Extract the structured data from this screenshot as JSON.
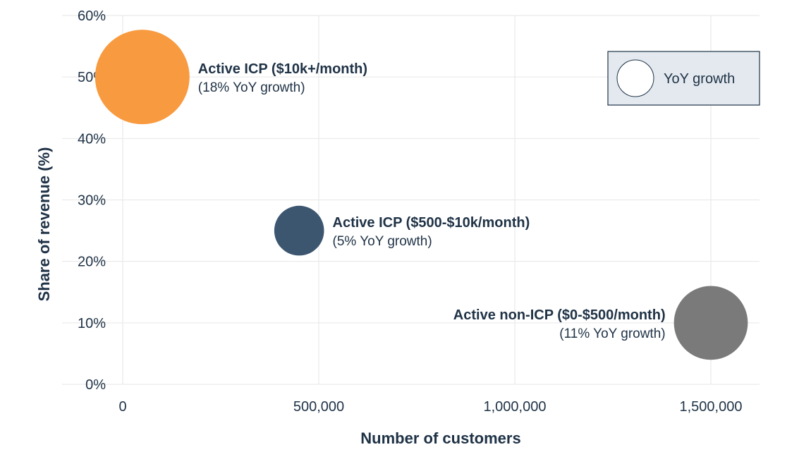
{
  "chart_data": {
    "type": "scatter",
    "xlabel": "Number of customers",
    "ylabel": "Share of revenue (%)",
    "xlim": [
      0,
      1600000
    ],
    "ylim": [
      0,
      60
    ],
    "x_ticks": [
      "0",
      "500,000",
      "1,000,000",
      "1,500,000"
    ],
    "x_tick_values": [
      0,
      500000,
      1000000,
      1500000
    ],
    "y_ticks": [
      "0%",
      "10%",
      "20%",
      "30%",
      "40%",
      "50%",
      "60%"
    ],
    "y_tick_values": [
      0,
      10,
      20,
      30,
      40,
      50,
      60
    ],
    "grid": true,
    "legend": {
      "label": "YoY growth",
      "position": "top-right"
    },
    "series": [
      {
        "label": "Active ICP ($10k+/month)",
        "sublabel": "(18% YoY growth)",
        "x": 50000,
        "y": 50,
        "growth": 18,
        "color": "#f89a3f",
        "label_side": "right"
      },
      {
        "label": "Active ICP ($500-$10k/month)",
        "sublabel": "(5% YoY growth)",
        "x": 450000,
        "y": 25,
        "growth": 5,
        "color": "#3c5670",
        "label_side": "right"
      },
      {
        "label": "Active non-ICP ($0-$500/month)",
        "sublabel": "(11% YoY growth)",
        "x": 1500000,
        "y": 10,
        "growth": 11,
        "color": "#7a7a7a",
        "label_side": "left"
      }
    ]
  }
}
